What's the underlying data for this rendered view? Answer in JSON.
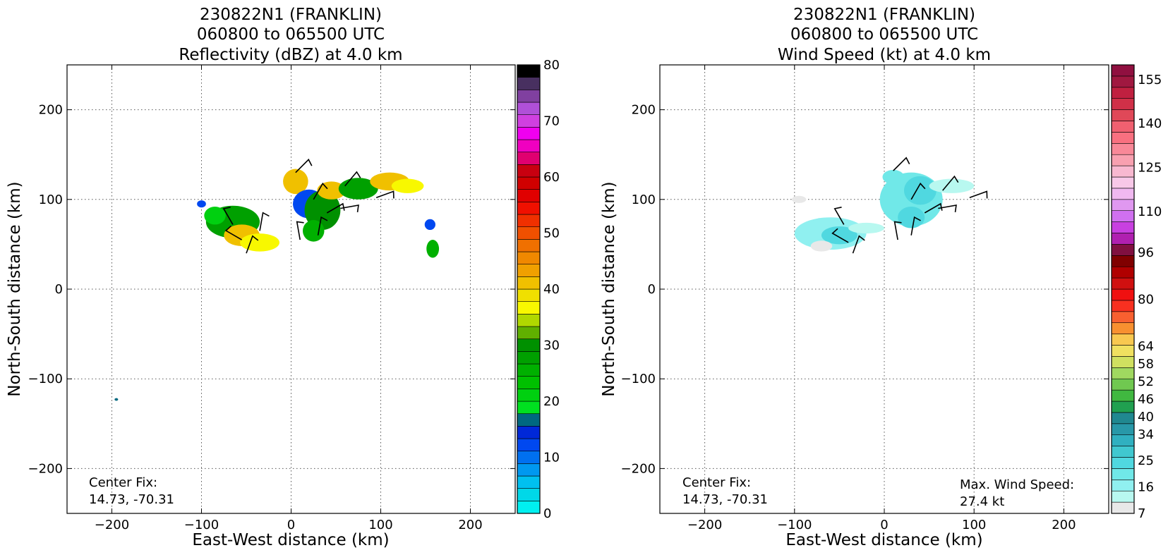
{
  "panels": [
    {
      "title_lines": [
        "230822N1 (FRANKLIN)",
        "060800 to 065500 UTC",
        "Reflectivity (dBZ) at 4.0 km"
      ],
      "xlabel": "East-West distance (km)",
      "ylabel": "North-South distance (km)",
      "center_fix_label": "Center Fix:",
      "center_fix_value": "14.73, -70.31",
      "max_wind_label": "",
      "max_wind_value": ""
    },
    {
      "title_lines": [
        "230822N1 (FRANKLIN)",
        "060800 to 065500 UTC",
        "Wind Speed (kt) at 4.0 km"
      ],
      "xlabel": "East-West distance (km)",
      "ylabel": "North-South distance (km)",
      "center_fix_label": "Center Fix:",
      "center_fix_value": "14.73, -70.31",
      "max_wind_label": "Max. Wind Speed:",
      "max_wind_value": "27.4 kt"
    }
  ],
  "chart_data": [
    {
      "type": "heatmap",
      "variable": "Reflectivity (dBZ)",
      "xlim": [
        -250,
        250
      ],
      "ylim": [
        -250,
        250
      ],
      "xticks": [
        -200,
        -100,
        0,
        100,
        200
      ],
      "yticks": [
        -200,
        -100,
        0,
        100,
        200
      ],
      "grid": true,
      "colorbar": {
        "range": [
          0,
          80
        ],
        "tick_values": [
          0,
          10,
          20,
          30,
          40,
          50,
          60,
          70,
          80
        ],
        "colors": [
          "#00f0f0",
          "#00d8e8",
          "#00c0f0",
          "#0098f0",
          "#0070f0",
          "#0048f0",
          "#0028d8",
          "#006880",
          "#00e020",
          "#00d010",
          "#00c000",
          "#00b000",
          "#00a000",
          "#009000",
          "#60b000",
          "#b0d800",
          "#f8f800",
          "#f0e000",
          "#f0c000",
          "#f0a000",
          "#f08800",
          "#f07000",
          "#f05000",
          "#f03000",
          "#f01000",
          "#e00000",
          "#d00000",
          "#c80010",
          "#e00070",
          "#f000c0",
          "#f000f0",
          "#d040e0",
          "#b050d8",
          "#8040a0",
          "#483060",
          "#000000"
        ]
      },
      "echoes": [
        {
          "x": -65,
          "y": 75,
          "rx": 30,
          "ry": 18,
          "value": 28
        },
        {
          "x": -55,
          "y": 60,
          "rx": 20,
          "ry": 12,
          "value": 40
        },
        {
          "x": -35,
          "y": 52,
          "rx": 22,
          "ry": 10,
          "value": 36
        },
        {
          "x": -85,
          "y": 82,
          "rx": 12,
          "ry": 10,
          "value": 22
        },
        {
          "x": 5,
          "y": 120,
          "rx": 14,
          "ry": 14,
          "value": 40
        },
        {
          "x": 20,
          "y": 95,
          "rx": 18,
          "ry": 16,
          "value": 12
        },
        {
          "x": 35,
          "y": 88,
          "rx": 20,
          "ry": 22,
          "value": 30
        },
        {
          "x": 45,
          "y": 110,
          "rx": 16,
          "ry": 10,
          "value": 42
        },
        {
          "x": 25,
          "y": 65,
          "rx": 12,
          "ry": 12,
          "value": 26
        },
        {
          "x": 75,
          "y": 112,
          "rx": 22,
          "ry": 12,
          "value": 28
        },
        {
          "x": 110,
          "y": 120,
          "rx": 22,
          "ry": 10,
          "value": 40
        },
        {
          "x": 130,
          "y": 115,
          "rx": 18,
          "ry": 8,
          "value": 36
        },
        {
          "x": 155,
          "y": 72,
          "rx": 6,
          "ry": 6,
          "value": 12
        },
        {
          "x": 158,
          "y": 45,
          "rx": 7,
          "ry": 10,
          "value": 26
        },
        {
          "x": -100,
          "y": 95,
          "rx": 5,
          "ry": 4,
          "value": 12
        },
        {
          "x": -195,
          "y": -123,
          "rx": 2,
          "ry": 1.5,
          "value": 16
        }
      ],
      "wind_barbs": [
        {
          "x": 5,
          "y": 130,
          "dir": 45
        },
        {
          "x": 25,
          "y": 100,
          "dir": 30
        },
        {
          "x": 40,
          "y": 85,
          "dir": 60
        },
        {
          "x": 30,
          "y": 60,
          "dir": 10
        },
        {
          "x": 60,
          "y": 115,
          "dir": 40
        },
        {
          "x": 95,
          "y": 102,
          "dir": 70
        },
        {
          "x": -65,
          "y": 72,
          "dir": 330
        },
        {
          "x": -55,
          "y": 55,
          "dir": 300
        },
        {
          "x": -50,
          "y": 40,
          "dir": 20
        },
        {
          "x": 10,
          "y": 55,
          "dir": 350
        },
        {
          "x": 55,
          "y": 90,
          "dir": 80
        },
        {
          "x": -35,
          "y": 65,
          "dir": 10
        }
      ]
    },
    {
      "type": "heatmap",
      "variable": "Wind Speed (kt)",
      "xlim": [
        -250,
        250
      ],
      "ylim": [
        -250,
        250
      ],
      "xticks": [
        -200,
        -100,
        0,
        100,
        200
      ],
      "yticks": [
        -200,
        -100,
        0,
        100,
        200
      ],
      "grid": true,
      "max_wind_kt": 27.4,
      "colorbar": {
        "range": [
          7,
          160
        ],
        "tick_values": [
          7,
          16,
          25,
          34,
          40,
          46,
          52,
          58,
          64,
          80,
          96,
          110,
          125,
          140,
          155
        ],
        "colors": [
          "#e8e8e8",
          "#b8f8f0",
          "#90f0f0",
          "#70e8e8",
          "#50d8e0",
          "#40c8d0",
          "#30b0c0",
          "#2898a8",
          "#208890",
          "#20a050",
          "#40b840",
          "#70c850",
          "#a0d860",
          "#d0e060",
          "#f0e060",
          "#f8c850",
          "#f89030",
          "#f86030",
          "#f83020",
          "#f01010",
          "#d01010",
          "#b00000",
          "#800000",
          "#801040",
          "#b020b0",
          "#c840e0",
          "#d070f0",
          "#e098f0",
          "#f0b8f0",
          "#f8c8e8",
          "#f8b8d0",
          "#f8a0b0",
          "#f88898",
          "#f87080",
          "#f06070",
          "#e04858",
          "#d03048",
          "#c02040",
          "#a01840",
          "#901040"
        ]
      },
      "echoes": [
        {
          "x": -60,
          "y": 62,
          "rx": 40,
          "ry": 18,
          "value": 18
        },
        {
          "x": -50,
          "y": 60,
          "rx": 20,
          "ry": 10,
          "value": 24
        },
        {
          "x": -20,
          "y": 68,
          "rx": 20,
          "ry": 6,
          "value": 14
        },
        {
          "x": 30,
          "y": 100,
          "rx": 35,
          "ry": 30,
          "value": 20
        },
        {
          "x": 40,
          "y": 110,
          "rx": 18,
          "ry": 16,
          "value": 26
        },
        {
          "x": 30,
          "y": 80,
          "rx": 15,
          "ry": 12,
          "value": 24
        },
        {
          "x": 75,
          "y": 115,
          "rx": 25,
          "ry": 8,
          "value": 14
        },
        {
          "x": 10,
          "y": 125,
          "rx": 12,
          "ry": 8,
          "value": 22
        },
        {
          "x": -95,
          "y": 100,
          "rx": 8,
          "ry": 4,
          "value": 10
        },
        {
          "x": -70,
          "y": 48,
          "rx": 12,
          "ry": 6,
          "value": 10
        }
      ],
      "wind_barbs": [
        {
          "x": 10,
          "y": 132,
          "dir": 45
        },
        {
          "x": 30,
          "y": 100,
          "dir": 30
        },
        {
          "x": 45,
          "y": 85,
          "dir": 60
        },
        {
          "x": 30,
          "y": 60,
          "dir": 10
        },
        {
          "x": 65,
          "y": 110,
          "dir": 40
        },
        {
          "x": 95,
          "y": 102,
          "dir": 70
        },
        {
          "x": -45,
          "y": 72,
          "dir": 330
        },
        {
          "x": -40,
          "y": 52,
          "dir": 300
        },
        {
          "x": -35,
          "y": 40,
          "dir": 20
        },
        {
          "x": 15,
          "y": 55,
          "dir": 350
        },
        {
          "x": 60,
          "y": 90,
          "dir": 80
        }
      ]
    }
  ]
}
